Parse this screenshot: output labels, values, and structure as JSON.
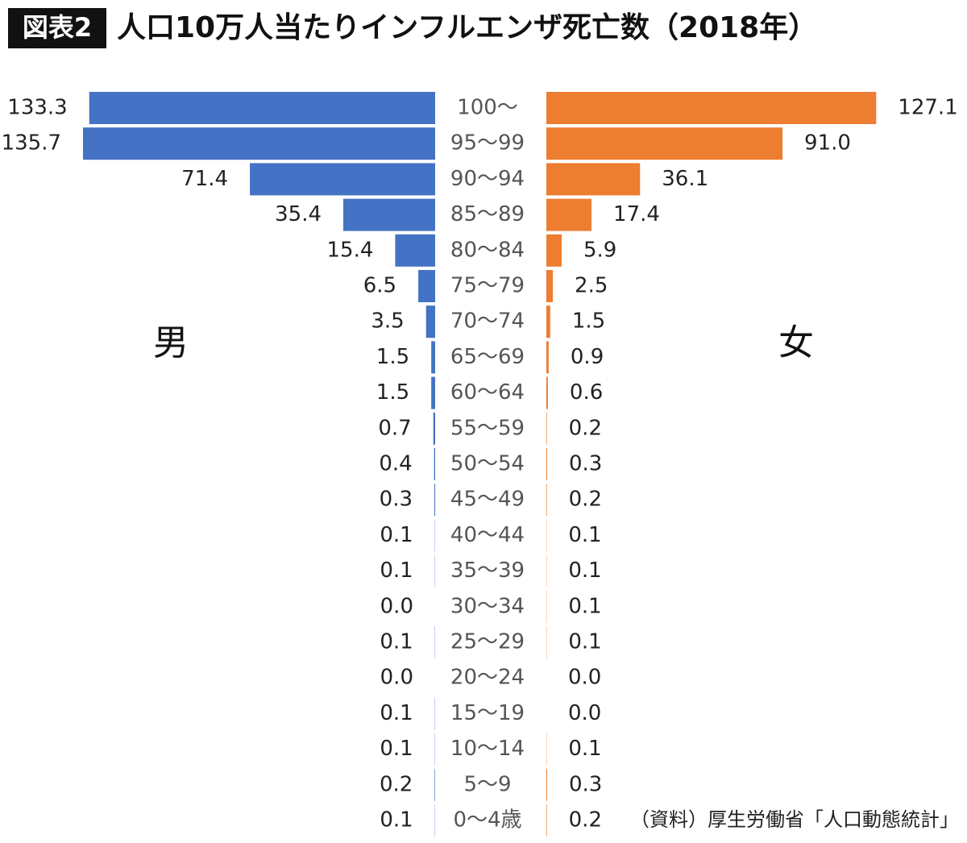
{
  "chart_data": {
    "type": "pyramid",
    "badge": "図表2",
    "title": "人口10万人当たりインフルエンザ死亡数（2018年）",
    "source": "（資料）厚生労働省「人口動態統計」",
    "categories": [
      "100〜",
      "95〜99",
      "90〜94",
      "85〜89",
      "80〜84",
      "75〜79",
      "70〜74",
      "65〜69",
      "60〜64",
      "55〜59",
      "50〜54",
      "45〜49",
      "40〜44",
      "35〜39",
      "30〜34",
      "25〜29",
      "20〜24",
      "15〜19",
      "10〜14",
      "5〜9",
      "0〜4歳"
    ],
    "series": [
      {
        "name": "男",
        "color": "#4472C4",
        "values": [
          133.3,
          135.7,
          71.4,
          35.4,
          15.4,
          6.5,
          3.5,
          1.5,
          1.5,
          0.7,
          0.4,
          0.3,
          0.1,
          0.1,
          0.0,
          0.1,
          0.0,
          0.1,
          0.1,
          0.2,
          0.1
        ],
        "value_labels": [
          "133.3",
          "135.7",
          "71.4",
          "35.4",
          "15.4",
          "6.5",
          "3.5",
          "1.5",
          "1.5",
          "0.7",
          "0.4",
          "0.3",
          "0.1",
          "0.1",
          "0.0",
          "0.1",
          "0.0",
          "0.1",
          "0.1",
          "0.2",
          "0.1"
        ]
      },
      {
        "name": "女",
        "color": "#ED7D31",
        "values": [
          127.1,
          91.0,
          36.1,
          17.4,
          5.9,
          2.5,
          1.5,
          0.9,
          0.6,
          0.2,
          0.3,
          0.2,
          0.1,
          0.1,
          0.1,
          0.1,
          0.0,
          0.0,
          0.1,
          0.3,
          0.2
        ],
        "value_labels": [
          "127.1",
          "91.0",
          "36.1",
          "17.4",
          "5.9",
          "2.5",
          "1.5",
          "0.9",
          "0.6",
          "0.2",
          "0.3",
          "0.2",
          "0.1",
          "0.1",
          "0.1",
          "0.1",
          "0.0",
          "0.0",
          "0.1",
          "0.3",
          "0.2"
        ]
      }
    ]
  }
}
